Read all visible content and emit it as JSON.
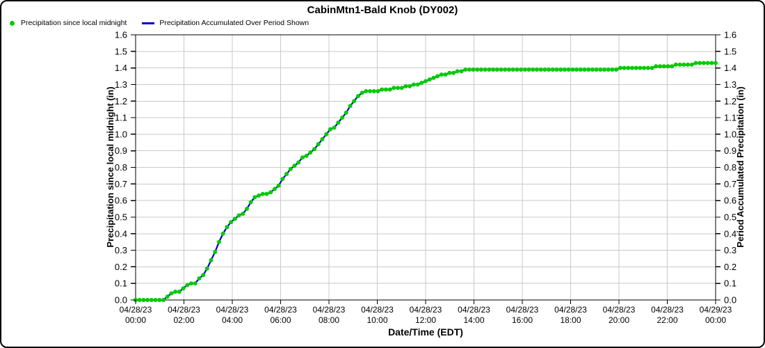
{
  "figure": {
    "title": "CabinMtn1-Bald Knob (DY002)"
  },
  "legend": [
    {
      "marker": "dot",
      "color": "#00cc00",
      "label": "Precipitation since local midnight"
    },
    {
      "marker": "line",
      "color": "#0000cc",
      "label": "Precipitation Accumulated Over Period Shown"
    }
  ],
  "colors": {
    "dots": "#00cc00",
    "line": "#0000cc",
    "grid": "#c9c9c9",
    "axis": "#000000"
  },
  "chart_data": {
    "type": "line",
    "title": "CabinMtn1-Bald Knob (DY002)",
    "xlabel": "Date/Time (EDT)",
    "ylabel_left": "Precipitation since local midnight (in)",
    "ylabel_right": "Period Accumulated Precipitation (in)",
    "ylim": [
      0.0,
      1.6
    ],
    "ytick_step": 0.1,
    "yticks": [
      "0.0",
      "0.1",
      "0.2",
      "0.3",
      "0.4",
      "0.5",
      "0.6",
      "0.7",
      "0.8",
      "0.9",
      "1.0",
      "1.1",
      "1.2",
      "1.3",
      "1.4",
      "1.5",
      "1.6"
    ],
    "grid": true,
    "legend_position": "top-left",
    "x_start": "04/28/23 00:00",
    "x_end": "04/29/23 00:00",
    "x_interval_minutes": 10,
    "xticks": [
      {
        "date": "04/28/23",
        "time": "00:00"
      },
      {
        "date": "04/28/23",
        "time": "02:00"
      },
      {
        "date": "04/28/23",
        "time": "04:00"
      },
      {
        "date": "04/28/23",
        "time": "06:00"
      },
      {
        "date": "04/28/23",
        "time": "08:00"
      },
      {
        "date": "04/28/23",
        "time": "10:00"
      },
      {
        "date": "04/28/23",
        "time": "12:00"
      },
      {
        "date": "04/28/23",
        "time": "14:00"
      },
      {
        "date": "04/28/23",
        "time": "16:00"
      },
      {
        "date": "04/28/23",
        "time": "18:00"
      },
      {
        "date": "04/28/23",
        "time": "20:00"
      },
      {
        "date": "04/28/23",
        "time": "22:00"
      },
      {
        "date": "04/29/23",
        "time": "00:00"
      }
    ],
    "series": [
      {
        "name": "Precipitation since local midnight",
        "style": "dots",
        "color": "#00cc00",
        "values": [
          0,
          0,
          0,
          0,
          0,
          0,
          0,
          0,
          0.02,
          0.04,
          0.05,
          0.05,
          0.07,
          0.09,
          0.1,
          0.1,
          0.13,
          0.15,
          0.19,
          0.24,
          0.29,
          0.35,
          0.4,
          0.44,
          0.47,
          0.49,
          0.51,
          0.52,
          0.55,
          0.59,
          0.62,
          0.63,
          0.64,
          0.64,
          0.65,
          0.67,
          0.69,
          0.73,
          0.76,
          0.79,
          0.81,
          0.83,
          0.86,
          0.87,
          0.89,
          0.91,
          0.94,
          0.97,
          1.0,
          1.03,
          1.04,
          1.07,
          1.1,
          1.13,
          1.17,
          1.2,
          1.23,
          1.25,
          1.26,
          1.26,
          1.26,
          1.26,
          1.27,
          1.27,
          1.27,
          1.28,
          1.28,
          1.28,
          1.29,
          1.29,
          1.3,
          1.3,
          1.31,
          1.32,
          1.33,
          1.34,
          1.35,
          1.36,
          1.36,
          1.37,
          1.37,
          1.38,
          1.38,
          1.39,
          1.39,
          1.39,
          1.39,
          1.39,
          1.39,
          1.39,
          1.39,
          1.39,
          1.39,
          1.39,
          1.39,
          1.39,
          1.39,
          1.39,
          1.39,
          1.39,
          1.39,
          1.39,
          1.39,
          1.39,
          1.39,
          1.39,
          1.39,
          1.39,
          1.39,
          1.39,
          1.39,
          1.39,
          1.39,
          1.39,
          1.39,
          1.39,
          1.39,
          1.39,
          1.39,
          1.39,
          1.39,
          1.39,
          1.4,
          1.4,
          1.4,
          1.4,
          1.4,
          1.4,
          1.4,
          1.4,
          1.4,
          1.41,
          1.41,
          1.41,
          1.41,
          1.41,
          1.42,
          1.42,
          1.42,
          1.42,
          1.42,
          1.43,
          1.43,
          1.43,
          1.43,
          1.43,
          1.43
        ]
      },
      {
        "name": "Precipitation Accumulated Over Period Shown",
        "style": "line",
        "color": "#0000cc",
        "values": [
          0,
          0,
          0,
          0,
          0,
          0,
          0,
          0,
          0.02,
          0.04,
          0.05,
          0.05,
          0.07,
          0.09,
          0.1,
          0.1,
          0.13,
          0.15,
          0.19,
          0.24,
          0.29,
          0.35,
          0.4,
          0.44,
          0.47,
          0.49,
          0.51,
          0.52,
          0.55,
          0.59,
          0.62,
          0.63,
          0.64,
          0.64,
          0.65,
          0.67,
          0.69,
          0.73,
          0.76,
          0.79,
          0.81,
          0.83,
          0.86,
          0.87,
          0.89,
          0.91,
          0.94,
          0.97,
          1.0,
          1.03,
          1.04,
          1.07,
          1.1,
          1.13,
          1.17,
          1.2,
          1.23,
          1.25,
          1.26,
          1.26,
          1.26,
          1.26,
          1.27,
          1.27,
          1.27,
          1.28,
          1.28,
          1.28,
          1.29,
          1.29,
          1.3,
          1.3,
          1.31,
          1.32,
          1.33,
          1.34,
          1.35,
          1.36,
          1.36,
          1.37,
          1.37,
          1.38,
          1.38,
          1.39,
          1.39,
          1.39,
          1.39,
          1.39,
          1.39,
          1.39,
          1.39,
          1.39,
          1.39,
          1.39,
          1.39,
          1.39,
          1.39,
          1.39,
          1.39,
          1.39,
          1.39,
          1.39,
          1.39,
          1.39,
          1.39,
          1.39,
          1.39,
          1.39,
          1.39,
          1.39,
          1.39,
          1.39,
          1.39,
          1.39,
          1.39,
          1.39,
          1.39,
          1.39,
          1.39,
          1.39,
          1.39,
          1.39,
          1.4,
          1.4,
          1.4,
          1.4,
          1.4,
          1.4,
          1.4,
          1.4,
          1.4,
          1.41,
          1.41,
          1.41,
          1.41,
          1.41,
          1.42,
          1.42,
          1.42,
          1.42,
          1.42,
          1.43,
          1.43,
          1.43,
          1.43,
          1.43,
          1.43
        ]
      }
    ]
  }
}
